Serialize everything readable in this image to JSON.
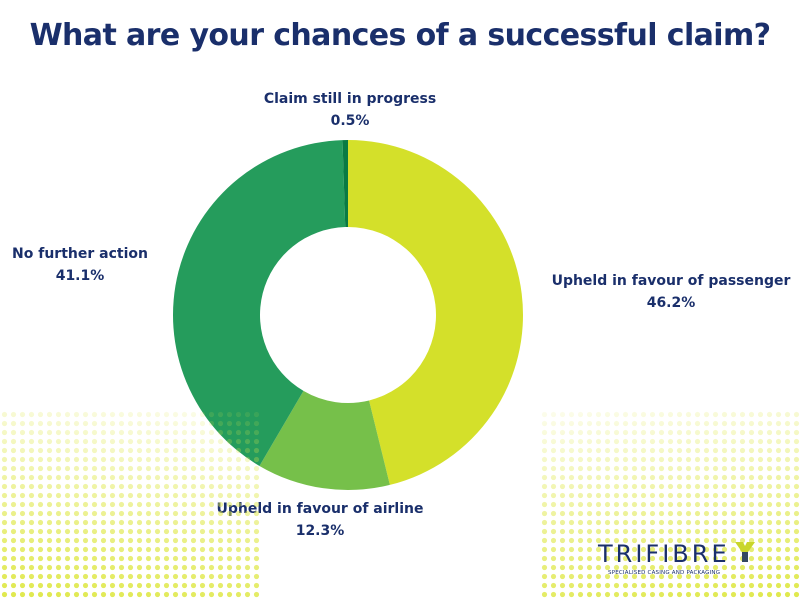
{
  "colors": {
    "title": "#1a2f6b",
    "slice_passenger": "#d4e02a",
    "slice_airline": "#76c04a",
    "slice_nofurther": "#259c5c",
    "slice_progress": "#0a7a43",
    "dots": "#dfe84a",
    "logo_mark": "#c9d62b"
  },
  "chart_data": {
    "type": "pie",
    "title": "What are your chances of a successful claim?",
    "donut": true,
    "slices": [
      {
        "label": "Upheld in favour of passenger",
        "value": 46.2,
        "display": "46.2%"
      },
      {
        "label": "Upheld in favour of airline",
        "value": 12.3,
        "display": "12.3%"
      },
      {
        "label": "No further action",
        "value": 41.1,
        "display": "41.1%"
      },
      {
        "label": "Claim still in progress",
        "value": 0.5,
        "display": "0.5%"
      }
    ]
  },
  "logo": {
    "name": "TRIFIBRE",
    "tagline": "SPECIALISED CASING AND PACKAGING",
    "icon": "trifibre-y-logo-icon"
  }
}
